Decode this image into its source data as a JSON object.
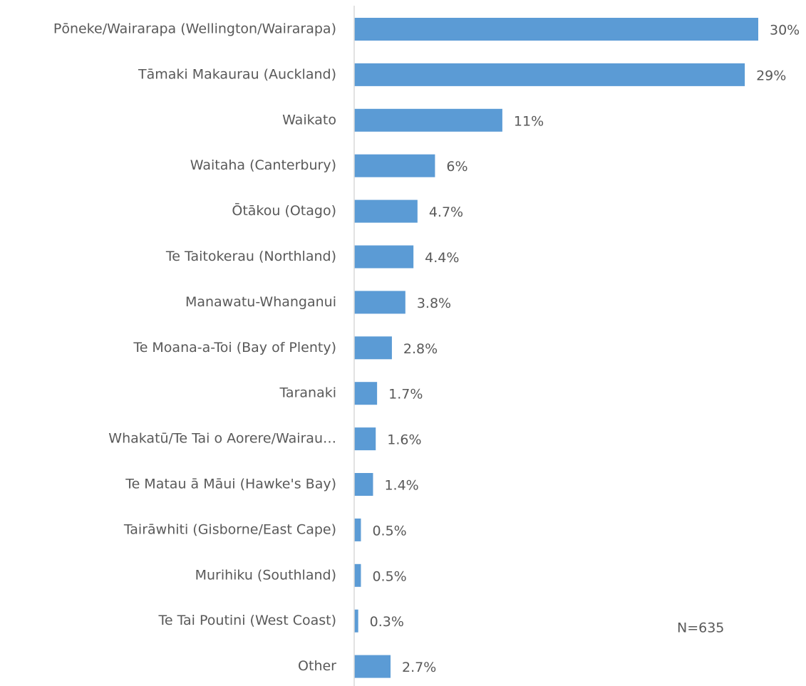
{
  "chart_data": {
    "type": "hbar",
    "categories": [
      "Pōneke/Wairarapa (Wellington/Wairarapa)",
      "Tāmaki Makaurau (Auckland)",
      "Waikato",
      "Waitaha (Canterbury)",
      "Ōtākou (Otago)",
      "Te Taitokerau (Northland)",
      "Manawatu-Whanganui",
      "Te Moana-a-Toi (Bay of Plenty)",
      "Taranaki",
      "Whakatū/Te Tai o Aorere/Wairau…",
      "Te Matau ā Māui (Hawke's Bay)",
      "Tairāwhiti (Gisborne/East Cape)",
      "Murihiku (Southland)",
      "Te Tai Poutini (West Coast)",
      "Other"
    ],
    "values": [
      30,
      29,
      11,
      6,
      4.7,
      4.4,
      3.8,
      2.8,
      1.7,
      1.6,
      1.4,
      0.5,
      0.5,
      0.3,
      2.7
    ],
    "value_labels": [
      "30%",
      "29%",
      "11%",
      "6%",
      "4.7%",
      "4.4%",
      "3.8%",
      "2.8%",
      "1.7%",
      "1.6%",
      "1.4%",
      "0.5%",
      "0.5%",
      "0.3%",
      "2.7%"
    ],
    "color": "#5b9bd5",
    "xlim": [
      0,
      30
    ],
    "annotation": "N=635"
  }
}
